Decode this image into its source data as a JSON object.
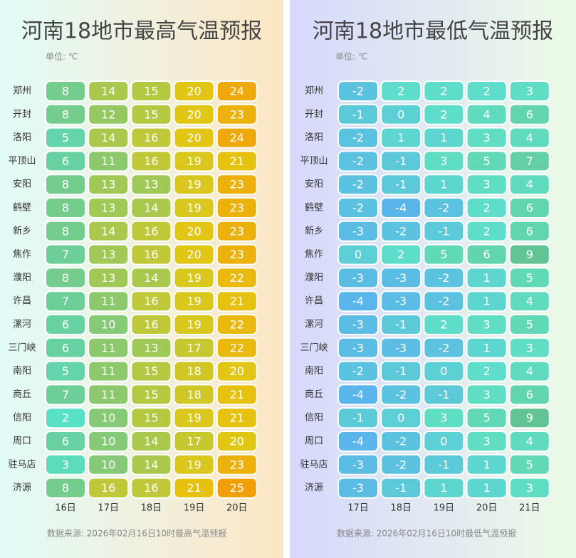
{
  "chart_data": [
    {
      "type": "heatmap",
      "title": "河南18地市最高气温预报",
      "subtitle": "单位: ℃",
      "source": "数据来源: 2026年02月16日10时最高气温预报",
      "rows": [
        "郑州",
        "开封",
        "洛阳",
        "平顶山",
        "安阳",
        "鹤壁",
        "新乡",
        "焦作",
        "濮阳",
        "许昌",
        "漯河",
        "三门峡",
        "南阳",
        "商丘",
        "信阳",
        "周口",
        "驻马店",
        "济源"
      ],
      "columns": [
        "16日",
        "17日",
        "18日",
        "19日",
        "20日"
      ],
      "values": [
        [
          8,
          14,
          15,
          20,
          24
        ],
        [
          8,
          12,
          15,
          20,
          23
        ],
        [
          5,
          14,
          16,
          20,
          24
        ],
        [
          6,
          11,
          16,
          19,
          21
        ],
        [
          8,
          13,
          13,
          19,
          23
        ],
        [
          8,
          13,
          14,
          19,
          23
        ],
        [
          8,
          14,
          16,
          20,
          23
        ],
        [
          7,
          13,
          16,
          20,
          23
        ],
        [
          8,
          13,
          14,
          19,
          22
        ],
        [
          7,
          11,
          16,
          19,
          21
        ],
        [
          6,
          10,
          16,
          19,
          22
        ],
        [
          6,
          11,
          13,
          17,
          22
        ],
        [
          5,
          11,
          15,
          18,
          20
        ],
        [
          7,
          11,
          15,
          18,
          21
        ],
        [
          2,
          10,
          15,
          19,
          21
        ],
        [
          6,
          10,
          14,
          17,
          20
        ],
        [
          3,
          10,
          14,
          19,
          23
        ],
        [
          8,
          16,
          16,
          21,
          25
        ]
      ],
      "colors": [
        "#58e0c4",
        "#6acf9c",
        "#8ec86a",
        "#bcc83a",
        "#e6c612",
        "#f0a006"
      ],
      "background": [
        "#e2fbf8",
        "#fde6c4"
      ]
    },
    {
      "type": "heatmap",
      "title": "河南18地市最低气温预报",
      "subtitle": "单位: ℃",
      "source": "数据来源: 2026年02月16日10时最低气温预报",
      "rows": [
        "郑州",
        "开封",
        "洛阳",
        "平顶山",
        "安阳",
        "鹤壁",
        "新乡",
        "焦作",
        "濮阳",
        "许昌",
        "漯河",
        "三门峡",
        "南阳",
        "商丘",
        "信阳",
        "周口",
        "驻马店",
        "济源"
      ],
      "columns": [
        "17日",
        "18日",
        "19日",
        "20日",
        "21日"
      ],
      "values": [
        [
          -2,
          2,
          2,
          2,
          3
        ],
        [
          -1,
          0,
          2,
          4,
          6
        ],
        [
          -2,
          1,
          1,
          3,
          4
        ],
        [
          -2,
          -1,
          3,
          5,
          7
        ],
        [
          -2,
          -1,
          1,
          3,
          4
        ],
        [
          -2,
          -4,
          -2,
          2,
          6
        ],
        [
          -3,
          -2,
          -1,
          2,
          6
        ],
        [
          0,
          2,
          5,
          6,
          9
        ],
        [
          -3,
          -3,
          -2,
          1,
          5
        ],
        [
          -4,
          -3,
          -2,
          1,
          4
        ],
        [
          -3,
          -1,
          2,
          3,
          5
        ],
        [
          -3,
          -3,
          -2,
          1,
          3
        ],
        [
          -2,
          -1,
          0,
          2,
          4
        ],
        [
          -4,
          -2,
          -1,
          3,
          6
        ],
        [
          -1,
          0,
          3,
          5,
          9
        ],
        [
          -4,
          -2,
          0,
          3,
          4
        ],
        [
          -3,
          -2,
          -1,
          1,
          5
        ],
        [
          -3,
          -1,
          1,
          1,
          3
        ]
      ],
      "colors": [
        "#5ab6ea",
        "#5ccbd8",
        "#5ee0c8",
        "#62d6b0",
        "#62c494"
      ],
      "background": [
        "#d6d8fc",
        "#ecfbe6"
      ]
    }
  ]
}
